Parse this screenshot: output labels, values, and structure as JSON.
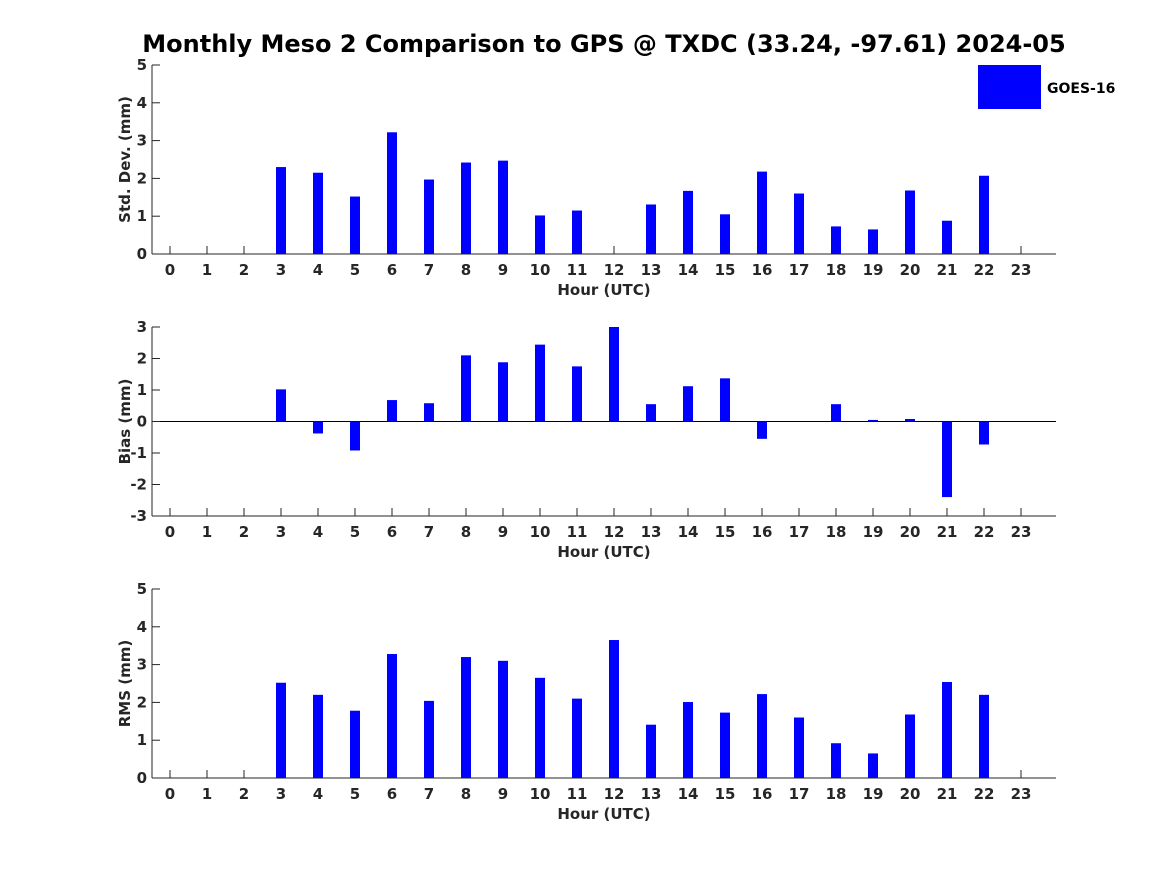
{
  "title": "Monthly Meso 2 Comparison to GPS @ TXDC (33.24, -97.61) 2024-05",
  "legend": {
    "label": "GOES-16",
    "color": "#0000ff"
  },
  "chart_data": [
    {
      "type": "bar",
      "name": "std-dev",
      "xlabel": "Hour (UTC)",
      "ylabel": "Std. Dev. (mm)",
      "ylim": [
        0,
        5
      ],
      "yticks": [
        "0",
        "1",
        "2",
        "3",
        "4",
        "5"
      ],
      "categories": [
        "0",
        "1",
        "2",
        "3",
        "4",
        "5",
        "6",
        "7",
        "8",
        "9",
        "10",
        "11",
        "12",
        "13",
        "14",
        "15",
        "16",
        "17",
        "18",
        "19",
        "20",
        "21",
        "22",
        "23"
      ],
      "series": [
        {
          "color": "#0000ff",
          "values": [
            null,
            null,
            null,
            2.3,
            2.15,
            1.52,
            3.22,
            1.97,
            2.42,
            2.47,
            1.02,
            1.15,
            null,
            1.31,
            1.67,
            1.05,
            2.18,
            1.6,
            0.73,
            0.65,
            1.68,
            0.88,
            2.07,
            null
          ]
        }
      ]
    },
    {
      "type": "bar",
      "name": "bias",
      "xlabel": "Hour (UTC)",
      "ylabel": "Bias (mm)",
      "ylim": [
        -3,
        3
      ],
      "yticks": [
        "-3",
        "-2",
        "-1",
        "0",
        "1",
        "2",
        "3"
      ],
      "categories": [
        "0",
        "1",
        "2",
        "3",
        "4",
        "5",
        "6",
        "7",
        "8",
        "9",
        "10",
        "11",
        "12",
        "13",
        "14",
        "15",
        "16",
        "17",
        "18",
        "19",
        "20",
        "21",
        "22",
        "23"
      ],
      "series": [
        {
          "color": "#0000ff",
          "values": [
            null,
            null,
            null,
            1.02,
            -0.38,
            -0.92,
            0.68,
            0.58,
            2.1,
            1.88,
            2.44,
            1.75,
            3.0,
            0.55,
            1.12,
            1.37,
            -0.55,
            null,
            0.55,
            0.05,
            0.08,
            -2.4,
            -0.73,
            null
          ]
        }
      ]
    },
    {
      "type": "bar",
      "name": "rms",
      "xlabel": "Hour (UTC)",
      "ylabel": "RMS (mm)",
      "ylim": [
        0,
        5
      ],
      "yticks": [
        "0",
        "1",
        "2",
        "3",
        "4",
        "5"
      ],
      "categories": [
        "0",
        "1",
        "2",
        "3",
        "4",
        "5",
        "6",
        "7",
        "8",
        "9",
        "10",
        "11",
        "12",
        "13",
        "14",
        "15",
        "16",
        "17",
        "18",
        "19",
        "20",
        "21",
        "22",
        "23"
      ],
      "series": [
        {
          "color": "#0000ff",
          "values": [
            null,
            null,
            null,
            2.52,
            2.2,
            1.78,
            3.28,
            2.04,
            3.2,
            3.1,
            2.65,
            2.1,
            3.65,
            1.41,
            2.01,
            1.73,
            2.22,
            1.6,
            0.92,
            0.65,
            1.68,
            2.54,
            2.2,
            null
          ]
        }
      ]
    }
  ]
}
